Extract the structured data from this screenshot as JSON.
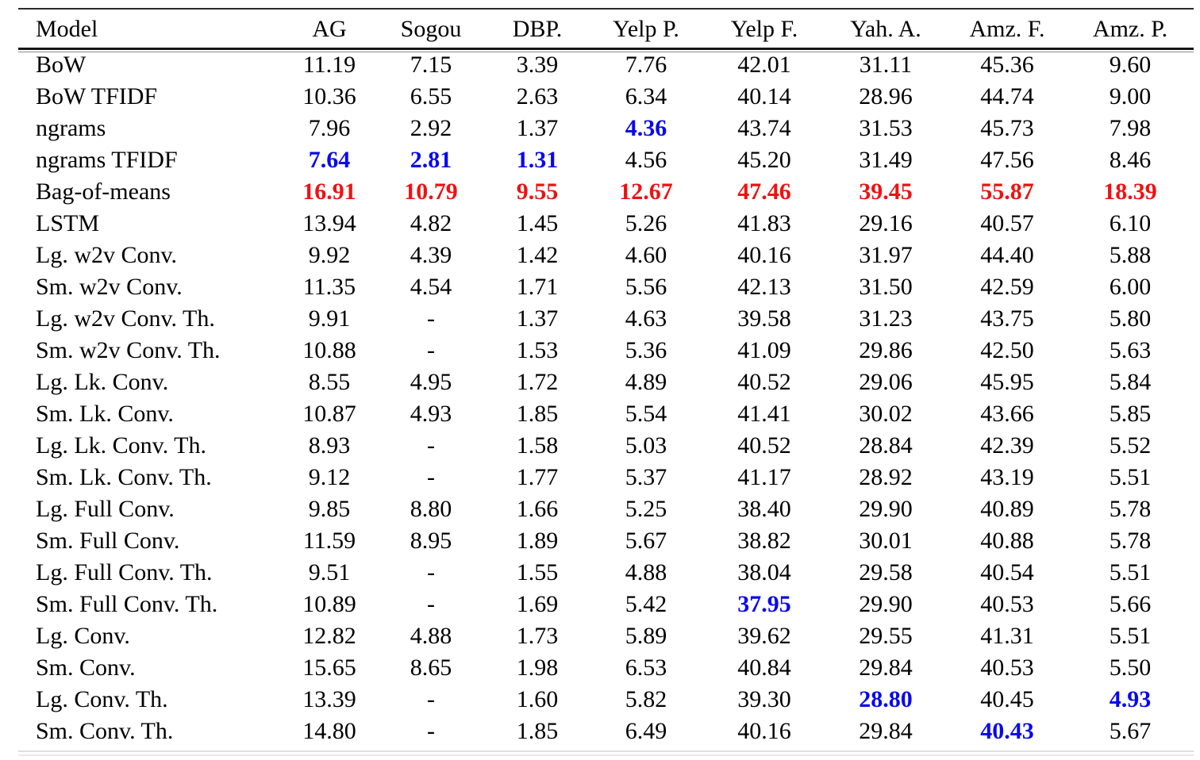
{
  "table": {
    "title": "model-testing-errors-table",
    "header": [
      "Model",
      "AG",
      "Sogou",
      "DBP.",
      "Yelp P.",
      "Yelp F.",
      "Yah. A.",
      "Amz. F.",
      "Amz. P."
    ],
    "missing_value_symbol": "-",
    "colors": {
      "best_blue": "#0808EE",
      "worst_red": "#EE1212",
      "text": "#000000",
      "rule_dark": "#2A2A2A",
      "rule_gray": "#8C8C8C",
      "rule_faint": "#DEDEDE"
    },
    "rows": [
      {
        "model": "BoW",
        "values": [
          "11.19",
          "7.15",
          "3.39",
          "7.76",
          "42.01",
          "31.11",
          "45.36",
          "9.60"
        ]
      },
      {
        "model": "BoW TFIDF",
        "values": [
          "10.36",
          "6.55",
          "2.63",
          "6.34",
          "40.14",
          "28.96",
          "44.74",
          "9.00"
        ]
      },
      {
        "model": "ngrams",
        "values": [
          "7.96",
          "2.92",
          "1.37",
          "4.36",
          "43.74",
          "31.53",
          "45.73",
          "7.98"
        ],
        "styles": [
          "",
          "",
          "",
          "best",
          "",
          "",
          "",
          ""
        ]
      },
      {
        "model": "ngrams TFIDF",
        "values": [
          "7.64",
          "2.81",
          "1.31",
          "4.56",
          "45.20",
          "31.49",
          "47.56",
          "8.46"
        ],
        "styles": [
          "best",
          "best",
          "best",
          "",
          "",
          "",
          "",
          ""
        ]
      },
      {
        "model": "Bag-of-means",
        "values": [
          "16.91",
          "10.79",
          "9.55",
          "12.67",
          "47.46",
          "39.45",
          "55.87",
          "18.39"
        ],
        "styles": [
          "worst",
          "worst",
          "worst",
          "worst",
          "worst",
          "worst",
          "worst",
          "worst"
        ]
      },
      {
        "model": "LSTM",
        "values": [
          "13.94",
          "4.82",
          "1.45",
          "5.26",
          "41.83",
          "29.16",
          "40.57",
          "6.10"
        ]
      },
      {
        "model": "Lg. w2v Conv.",
        "values": [
          "9.92",
          "4.39",
          "1.42",
          "4.60",
          "40.16",
          "31.97",
          "44.40",
          "5.88"
        ]
      },
      {
        "model": "Sm. w2v Conv.",
        "values": [
          "11.35",
          "4.54",
          "1.71",
          "5.56",
          "42.13",
          "31.50",
          "42.59",
          "6.00"
        ]
      },
      {
        "model": "Lg. w2v Conv. Th.",
        "values": [
          "9.91",
          "-",
          "1.37",
          "4.63",
          "39.58",
          "31.23",
          "43.75",
          "5.80"
        ]
      },
      {
        "model": "Sm. w2v Conv. Th.",
        "values": [
          "10.88",
          "-",
          "1.53",
          "5.36",
          "41.09",
          "29.86",
          "42.50",
          "5.63"
        ]
      },
      {
        "model": "Lg. Lk. Conv.",
        "values": [
          "8.55",
          "4.95",
          "1.72",
          "4.89",
          "40.52",
          "29.06",
          "45.95",
          "5.84"
        ]
      },
      {
        "model": "Sm. Lk. Conv.",
        "values": [
          "10.87",
          "4.93",
          "1.85",
          "5.54",
          "41.41",
          "30.02",
          "43.66",
          "5.85"
        ]
      },
      {
        "model": "Lg. Lk. Conv. Th.",
        "values": [
          "8.93",
          "-",
          "1.58",
          "5.03",
          "40.52",
          "28.84",
          "42.39",
          "5.52"
        ]
      },
      {
        "model": "Sm. Lk. Conv. Th.",
        "values": [
          "9.12",
          "-",
          "1.77",
          "5.37",
          "41.17",
          "28.92",
          "43.19",
          "5.51"
        ]
      },
      {
        "model": "Lg. Full Conv.",
        "values": [
          "9.85",
          "8.80",
          "1.66",
          "5.25",
          "38.40",
          "29.90",
          "40.89",
          "5.78"
        ]
      },
      {
        "model": "Sm. Full Conv.",
        "values": [
          "11.59",
          "8.95",
          "1.89",
          "5.67",
          "38.82",
          "30.01",
          "40.88",
          "5.78"
        ]
      },
      {
        "model": "Lg. Full Conv. Th.",
        "values": [
          "9.51",
          "-",
          "1.55",
          "4.88",
          "38.04",
          "29.58",
          "40.54",
          "5.51"
        ]
      },
      {
        "model": "Sm. Full Conv. Th.",
        "values": [
          "10.89",
          "-",
          "1.69",
          "5.42",
          "37.95",
          "29.90",
          "40.53",
          "5.66"
        ],
        "styles": [
          "",
          "",
          "",
          "",
          "best",
          "",
          "",
          ""
        ]
      },
      {
        "model": "Lg. Conv.",
        "values": [
          "12.82",
          "4.88",
          "1.73",
          "5.89",
          "39.62",
          "29.55",
          "41.31",
          "5.51"
        ]
      },
      {
        "model": "Sm. Conv.",
        "values": [
          "15.65",
          "8.65",
          "1.98",
          "6.53",
          "40.84",
          "29.84",
          "40.53",
          "5.50"
        ]
      },
      {
        "model": "Lg. Conv. Th.",
        "values": [
          "13.39",
          "-",
          "1.60",
          "5.82",
          "39.30",
          "28.80",
          "40.45",
          "4.93"
        ],
        "styles": [
          "",
          "",
          "",
          "",
          "",
          "best",
          "",
          "best"
        ]
      },
      {
        "model": "Sm. Conv. Th.",
        "values": [
          "14.80",
          "-",
          "1.85",
          "6.49",
          "40.16",
          "29.84",
          "40.43",
          "5.67"
        ],
        "styles": [
          "",
          "",
          "",
          "",
          "",
          "",
          "best",
          ""
        ]
      }
    ]
  }
}
